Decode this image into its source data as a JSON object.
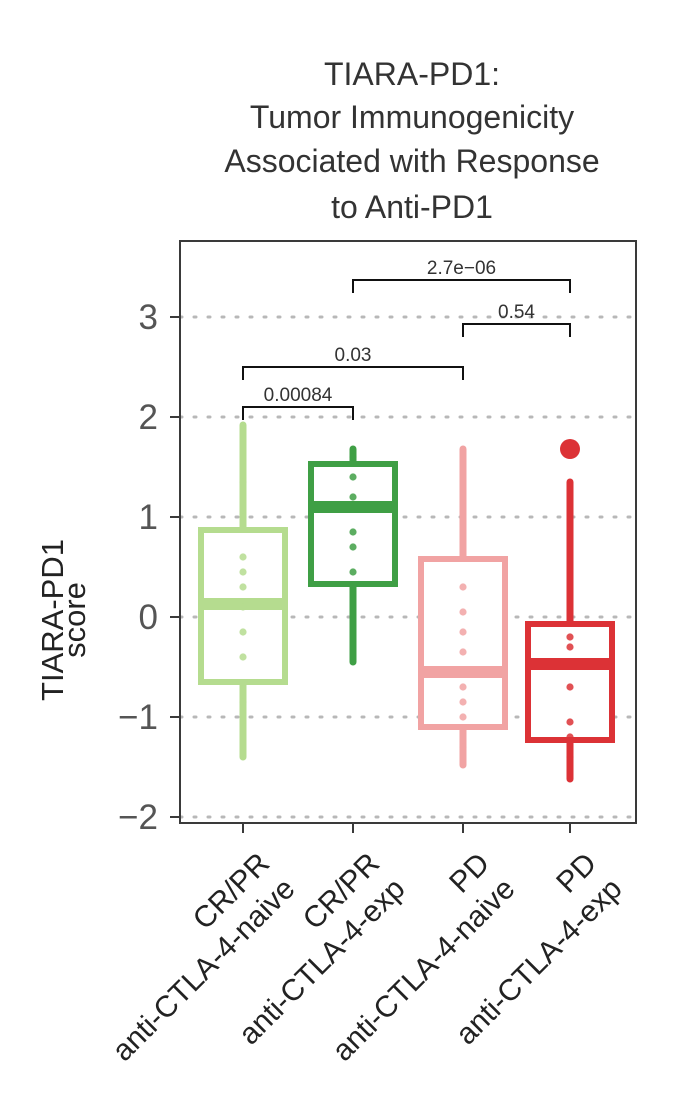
{
  "chart_data": {
    "type": "box",
    "title_lines": [
      "TIARA-PD1:",
      "Tumor Immunogenicity",
      "Associated with Response",
      "to Anti-PD1"
    ],
    "ylabel_lines": [
      "TIARA-PD1",
      "score"
    ],
    "yticks": [
      {
        "value": 3,
        "label": "3"
      },
      {
        "value": 2,
        "label": "2"
      },
      {
        "value": 1,
        "label": "1"
      },
      {
        "value": 0,
        "label": "0"
      },
      {
        "value": -1,
        "label": "−1"
      },
      {
        "value": -2,
        "label": "−2"
      }
    ],
    "ylim": [
      -2.05,
      3.77
    ],
    "grid": "dotted-horizontal",
    "groups": [
      {
        "line1": "CR/PR",
        "line2": "anti-CTLA-4-naive",
        "color": "#b5dc8f",
        "stats": {
          "min": -1.4,
          "q1": -0.65,
          "median": 0.13,
          "q3": 0.87,
          "max": 1.92
        },
        "points": [
          1.35,
          1.0,
          0.6,
          0.45,
          0.3,
          0.1,
          -0.15,
          -0.4,
          -0.85
        ]
      },
      {
        "line1": "CR/PR",
        "line2": "anti-CTLA-4-exp",
        "color": "#3f9f45",
        "stats": {
          "min": -0.45,
          "q1": 0.33,
          "median": 1.1,
          "q3": 1.53,
          "max": 1.68
        },
        "points": [
          1.6,
          1.4,
          1.2,
          0.85,
          0.7,
          0.45
        ]
      },
      {
        "line1": "PD",
        "line2": "anti-CTLA-4-naive",
        "color": "#f1a3a3",
        "stats": {
          "min": -1.48,
          "q1": -1.1,
          "median": -0.55,
          "q3": 0.58,
          "max": 1.68
        },
        "points": [
          0.3,
          0.05,
          -0.15,
          -0.35,
          -0.7,
          -0.85,
          -1.0,
          -1.3
        ]
      },
      {
        "line1": "PD",
        "line2": "anti-CTLA-4-exp",
        "color": "#dc3236",
        "stats": {
          "min": -1.62,
          "q1": -1.23,
          "median": -0.47,
          "q3": -0.07,
          "max": 1.35
        },
        "points": [
          -0.2,
          -0.3,
          -0.7,
          -1.05,
          -1.2,
          -1.4
        ],
        "outliers": [
          1.68
        ]
      }
    ],
    "comparisons": [
      {
        "from": 0,
        "to": 1,
        "label": "0.00084",
        "y": 2.1
      },
      {
        "from": 0,
        "to": 2,
        "label": "0.03",
        "y": 2.5
      },
      {
        "from": 2,
        "to": 3,
        "label": "0.54",
        "y": 2.93
      },
      {
        "from": 1,
        "to": 3,
        "label": "2.7e−06",
        "y": 3.37
      }
    ]
  }
}
